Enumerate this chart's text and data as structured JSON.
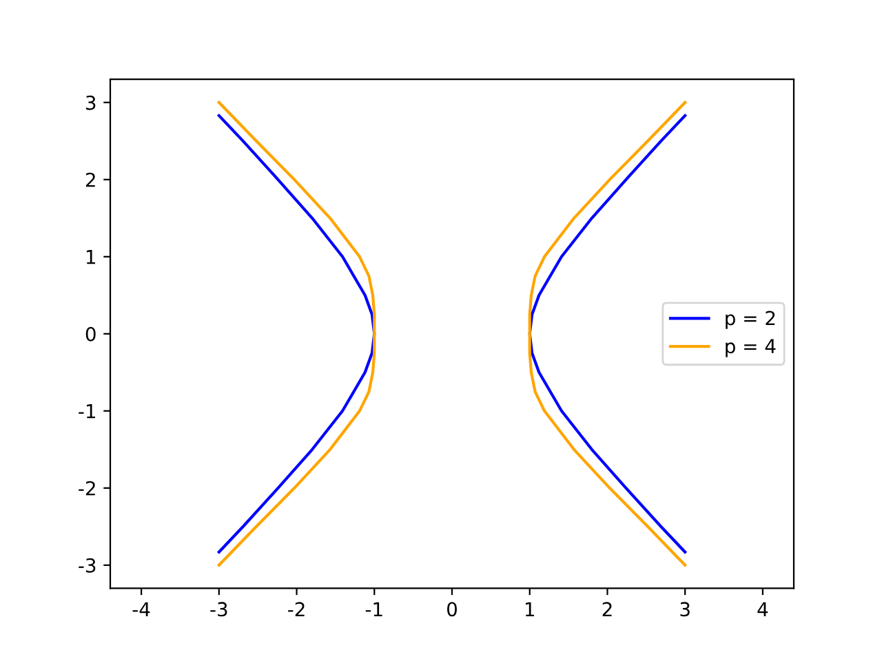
{
  "chart_data": {
    "type": "line",
    "xlim": [
      -4.4,
      4.4
    ],
    "ylim": [
      -3.3,
      3.3
    ],
    "xticks": [
      -4,
      -3,
      -2,
      -1,
      0,
      1,
      2,
      3,
      4
    ],
    "yticks": [
      -3,
      -2,
      -1,
      0,
      1,
      2,
      3
    ],
    "grid": false,
    "legend": "right",
    "line_style": "solid",
    "marker": "none",
    "series": [
      {
        "name": "p = 2",
        "color": "#0000ff",
        "x": [
          3.0,
          2.69,
          2.24,
          1.8,
          1.41,
          1.12,
          1.03,
          1.0,
          1.03,
          1.12,
          1.41,
          1.8,
          2.24,
          2.69,
          3.0,
          null,
          -3.0,
          -2.69,
          -2.24,
          -1.8,
          -1.41,
          -1.12,
          -1.03,
          -1.0,
          -1.03,
          -1.12,
          -1.41,
          -1.8,
          -2.24,
          -2.69,
          -3.0
        ],
        "values": [
          -2.83,
          -2.5,
          -2.0,
          -1.5,
          -1.0,
          -0.5,
          -0.25,
          0.0,
          0.25,
          0.5,
          1.0,
          1.5,
          2.0,
          2.5,
          2.83,
          null,
          -2.83,
          -2.5,
          -2.0,
          -1.5,
          -1.0,
          -0.5,
          -0.25,
          0.0,
          0.25,
          0.5,
          1.0,
          1.5,
          2.0,
          2.5,
          2.83
        ]
      },
      {
        "name": "p = 4",
        "color": "#ffa500",
        "x": [
          3.0,
          2.52,
          2.03,
          1.57,
          1.19,
          1.07,
          1.02,
          1.0,
          1.0,
          1.0,
          1.02,
          1.07,
          1.19,
          1.57,
          2.03,
          2.52,
          3.0,
          null,
          -3.0,
          -2.52,
          -2.03,
          -1.57,
          -1.19,
          -1.07,
          -1.02,
          -1.0,
          -1.0,
          -1.0,
          -1.02,
          -1.07,
          -1.19,
          -1.57,
          -2.03,
          -2.52,
          -3.0
        ],
        "values": [
          -3.0,
          -2.5,
          -2.0,
          -1.5,
          -1.0,
          -0.75,
          -0.5,
          -0.25,
          0.0,
          0.25,
          0.5,
          0.75,
          1.0,
          1.5,
          2.0,
          2.5,
          3.0,
          null,
          -3.0,
          -2.5,
          -2.0,
          -1.5,
          -1.0,
          -0.75,
          -0.5,
          -0.25,
          0.0,
          0.25,
          0.5,
          0.75,
          1.0,
          1.5,
          2.0,
          2.5,
          3.0
        ]
      }
    ]
  }
}
